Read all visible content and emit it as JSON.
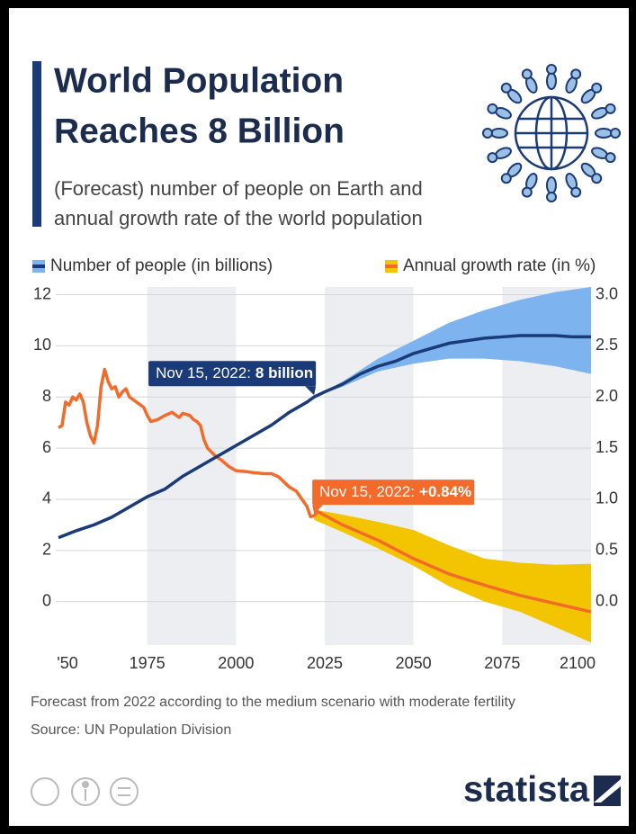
{
  "chart_data": {
    "type": "line",
    "title": [
      "World Population",
      "Reaches 8 Billion"
    ],
    "subtitle": [
      "(Forecast) number of people on Earth and",
      "annual growth rate of the world population"
    ],
    "xlim": [
      1950,
      2100
    ],
    "xticks": [
      {
        "value": 1950,
        "label": "'50"
      },
      1975,
      2000,
      2025,
      2050,
      2075,
      2100
    ],
    "ylim": [
      -1.7,
      12.3
    ],
    "yticks": [
      0,
      2,
      4,
      6,
      8,
      10,
      12
    ],
    "y2lim": [
      -0.425,
      3.075
    ],
    "y2ticks": [
      {
        "value": 0,
        "label": "0.0"
      },
      0.5,
      {
        "value": 1,
        "label": "1.0"
      },
      1.5,
      {
        "value": 2,
        "label": "2.0"
      },
      2.5,
      {
        "value": 3,
        "label": "3.0"
      }
    ],
    "grid": true,
    "series": [
      {
        "name": "Number of people (in billions)",
        "color": "#1b3a78",
        "x": [
          1950,
          1955,
          1960,
          1965,
          1970,
          1975,
          1980,
          1985,
          1990,
          1995,
          2000,
          2005,
          2010,
          2015,
          2020,
          2022,
          2025,
          2030,
          2035,
          2040,
          2045,
          2050,
          2055,
          2060,
          2065,
          2070,
          2075,
          2080,
          2085,
          2090,
          2095,
          2100
        ],
        "values": [
          2.5,
          2.77,
          3.0,
          3.3,
          3.7,
          4.1,
          4.4,
          4.9,
          5.3,
          5.7,
          6.1,
          6.5,
          6.9,
          7.4,
          7.8,
          8.0,
          8.2,
          8.5,
          8.9,
          9.2,
          9.4,
          9.7,
          9.9,
          10.1,
          10.2,
          10.3,
          10.35,
          10.4,
          10.4,
          10.4,
          10.35,
          10.35
        ]
      },
      {
        "color": "#7db4ef",
        "x": [
          2022,
          2030,
          2040,
          2050,
          2060,
          2070,
          2080,
          2090,
          2100
        ],
        "upper": [
          8.0,
          8.6,
          9.5,
          10.2,
          10.9,
          11.4,
          11.8,
          12.1,
          12.3
        ],
        "lower": [
          8.0,
          8.4,
          9.0,
          9.3,
          9.5,
          9.5,
          9.4,
          9.2,
          8.9
        ]
      },
      {
        "name": "Annual growth rate (in %)",
        "color": "#f26b2a",
        "axis": "y2",
        "x": [
          1950,
          1951,
          1952,
          1953,
          1954,
          1955,
          1956,
          1957,
          1958,
          1959,
          1960,
          1961,
          1962,
          1963,
          1964,
          1965,
          1966,
          1967,
          1968,
          1969,
          1970,
          1972,
          1974,
          1975,
          1976,
          1978,
          1980,
          1982,
          1984,
          1985,
          1986,
          1987,
          1988,
          1989,
          1990,
          1991,
          1992,
          1994,
          1996,
          1998,
          2000,
          2003,
          2005,
          2008,
          2010,
          2012,
          2015,
          2017,
          2019,
          2020,
          2021,
          2022,
          2023,
          2030,
          2040,
          2050,
          2060,
          2070,
          2080,
          2090,
          2100
        ],
        "values": [
          1.7,
          1.72,
          1.95,
          1.92,
          2.0,
          1.97,
          2.03,
          1.95,
          1.75,
          1.62,
          1.55,
          1.72,
          2.1,
          2.27,
          2.15,
          2.08,
          2.1,
          2.0,
          2.05,
          2.08,
          2.0,
          1.95,
          1.9,
          1.82,
          1.76,
          1.78,
          1.82,
          1.85,
          1.8,
          1.84,
          1.83,
          1.82,
          1.78,
          1.76,
          1.72,
          1.58,
          1.5,
          1.43,
          1.38,
          1.32,
          1.28,
          1.27,
          1.26,
          1.25,
          1.25,
          1.22,
          1.12,
          1.08,
          0.98,
          0.93,
          0.83,
          0.84,
          0.88,
          0.75,
          0.6,
          0.42,
          0.27,
          0.16,
          0.06,
          -0.02,
          -0.1
        ]
      },
      {
        "color": "#f2c500",
        "axis": "y2",
        "x": [
          2022,
          2030,
          2040,
          2050,
          2060,
          2070,
          2080,
          2090,
          2100
        ],
        "upper": [
          0.9,
          0.85,
          0.78,
          0.7,
          0.55,
          0.42,
          0.38,
          0.36,
          0.37
        ],
        "lower": [
          0.8,
          0.68,
          0.52,
          0.35,
          0.15,
          0.0,
          -0.1,
          -0.25,
          -0.4
        ]
      }
    ],
    "annotations": [
      {
        "label": "Nov 15, 2022:",
        "value_label": "8 billion",
        "x": 2022,
        "y": 8,
        "color": "#1b3a78"
      },
      {
        "label": "Nov 15, 2022:",
        "value_label": "+0.84%",
        "x": 2022,
        "y": 0.84,
        "axis": "y2",
        "color": "#f26b2a"
      }
    ],
    "footnote": "Forecast from 2022 according to the medium scenario with moderate fertility",
    "source": "Source: UN Population Division",
    "logo": "statista"
  }
}
